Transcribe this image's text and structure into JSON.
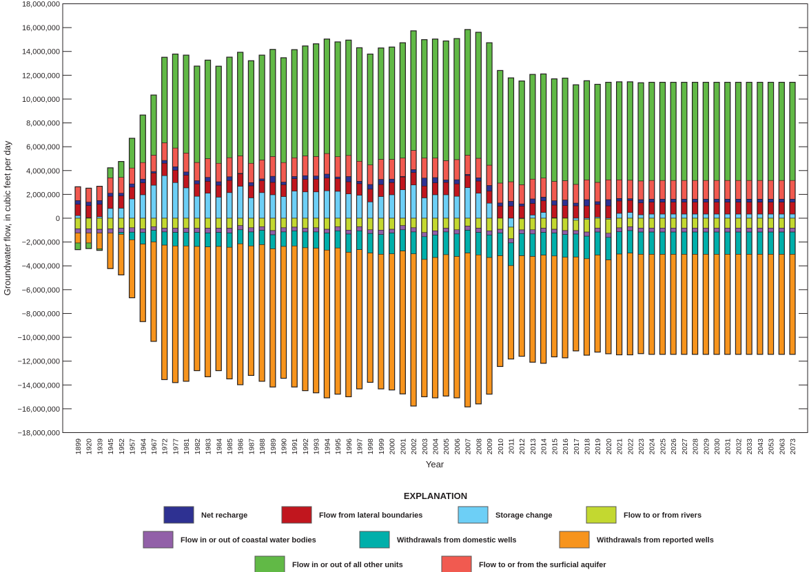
{
  "chart_data": {
    "type": "bar",
    "stacked": true,
    "xlabel": "Year",
    "ylabel": "Groundwater flow, in cubic feet per day",
    "ylim": [
      -18000000,
      18000000
    ],
    "yticks": [
      18000000,
      16000000,
      14000000,
      12000000,
      10000000,
      8000000,
      6000000,
      4000000,
      2000000,
      0,
      -2000000,
      -4000000,
      -6000000,
      -8000000,
      -10000000,
      -12000000,
      -14000000,
      -16000000,
      -18000000
    ],
    "ytick_labels": [
      "18,000,000",
      "16,000,000",
      "14,000,000",
      "12,000,000",
      "10,000,000",
      "8,000,000",
      "6,000,000",
      "4,000,000",
      "2,000,000",
      "0",
      "−2,000,000",
      "−4,000,000",
      "−6,000,000",
      "−8,000,000",
      "−10,000,000",
      "−12,000,000",
      "−14,000,000",
      "−16,000,000",
      "−18,000,000"
    ],
    "grid": false,
    "legend_title": "EXPLANATION",
    "legend_position": "bottom",
    "categories": [
      "1899",
      "1920",
      "1939",
      "1945",
      "1952",
      "1957",
      "1964",
      "1967",
      "1972",
      "1977",
      "1981",
      "1982",
      "1983",
      "1984",
      "1985",
      "1986",
      "1987",
      "1988",
      "1989",
      "1990",
      "1991",
      "1992",
      "1993",
      "1994",
      "1995",
      "1996",
      "1997",
      "1998",
      "1999",
      "2000",
      "2001",
      "2002",
      "2003",
      "2004",
      "2005",
      "2006",
      "2007",
      "2008",
      "2009",
      "2010",
      "2011",
      "2012",
      "2013",
      "2014",
      "2015",
      "2016",
      "2017",
      "2018",
      "2019",
      "2020",
      "2021",
      "2022",
      "2023",
      "2024",
      "2025",
      "2026",
      "2027",
      "2028",
      "2029",
      "2030",
      "2031",
      "2032",
      "2033",
      "2043",
      "2053",
      "2063",
      "2073"
    ],
    "series": [
      {
        "name": "Net recharge",
        "color": "#2e3192",
        "values": [
          310000,
          290000,
          310000,
          260000,
          220000,
          270000,
          310000,
          130000,
          240000,
          290000,
          270000,
          270000,
          330000,
          290000,
          310000,
          50000,
          270000,
          150000,
          510000,
          220000,
          180000,
          310000,
          260000,
          330000,
          140000,
          440000,
          200000,
          390000,
          430000,
          290000,
          50000,
          250000,
          670000,
          440000,
          200000,
          350000,
          90000,
          270000,
          470000,
          260000,
          400000,
          180000,
          380000,
          310000,
          370000,
          470000,
          230000,
          520000,
          230000,
          520000,
          210000,
          150000,
          270000,
          250000,
          250000,
          250000,
          250000,
          250000,
          250000,
          250000,
          250000,
          250000,
          250000,
          250000,
          250000,
          250000,
          250000
        ]
      },
      {
        "name": "Flow from lateral boundaries",
        "color": "#c1161e",
        "values": [
          950000,
          1010000,
          1040000,
          1020000,
          1040000,
          990000,
          1000000,
          1020000,
          1040000,
          1040000,
          1060000,
          1040000,
          1000000,
          1000000,
          1020000,
          1040000,
          1010000,
          1000000,
          1040000,
          990000,
          1040000,
          1050000,
          1070000,
          1070000,
          1060000,
          1020000,
          970000,
          1070000,
          1010000,
          1020000,
          1070000,
          1040000,
          990000,
          1000000,
          1040000,
          1040000,
          1020000,
          1020000,
          1020000,
          1020000,
          1020000,
          1020000,
          970000,
          970000,
          1060000,
          1040000,
          1040000,
          1040000,
          1060000,
          1040000,
          1040000,
          1010000,
          1000000,
          1000000,
          1000000,
          1000000,
          1000000,
          1000000,
          1000000,
          1000000,
          1000000,
          1000000,
          1000000,
          1000000,
          1000000,
          1000000,
          1000000
        ]
      },
      {
        "name": "Storage change",
        "color": "#6dcff6",
        "values": [
          220000,
          50000,
          130000,
          820000,
          840000,
          1620000,
          1970000,
          2770000,
          3570000,
          2990000,
          2550000,
          1840000,
          2100000,
          1770000,
          2150000,
          2680000,
          1710000,
          2150000,
          1970000,
          1820000,
          2280000,
          2210000,
          2210000,
          2300000,
          2260000,
          2040000,
          1930000,
          1370000,
          1820000,
          1970000,
          2390000,
          2790000,
          1710000,
          1970000,
          1970000,
          1840000,
          2570000,
          2100000,
          1260000,
          0,
          -750000,
          -50000,
          270000,
          490000,
          40000,
          20000,
          -170000,
          -100000,
          100000,
          -80000,
          410000,
          480000,
          290000,
          350000,
          350000,
          350000,
          350000,
          350000,
          350000,
          350000,
          350000,
          350000,
          350000,
          350000,
          350000,
          350000,
          350000
        ]
      },
      {
        "name": "Flow to or from rivers",
        "color": "#c3d830",
        "values": [
          -890000,
          -890000,
          -930000,
          -890000,
          -840000,
          -800000,
          -890000,
          -710000,
          -840000,
          -840000,
          -840000,
          -840000,
          -840000,
          -840000,
          -840000,
          -620000,
          -800000,
          -710000,
          -1040000,
          -800000,
          -750000,
          -840000,
          -800000,
          -930000,
          -710000,
          -1000000,
          -710000,
          -970000,
          -1000000,
          -930000,
          -620000,
          -800000,
          -1200000,
          -1060000,
          -840000,
          -970000,
          -660000,
          -840000,
          -1060000,
          -930000,
          -970000,
          -930000,
          -970000,
          -840000,
          -930000,
          -1040000,
          -870000,
          -1060000,
          -830000,
          -1180000,
          -810000,
          -710000,
          -830000,
          -830000,
          -830000,
          -830000,
          -830000,
          -830000,
          -830000,
          -830000,
          -830000,
          -830000,
          -830000,
          -830000,
          -830000,
          -830000,
          -830000
        ]
      },
      {
        "name": "Flow in or out of coastal water bodies",
        "color": "#9260a8",
        "values": [
          -350000,
          -350000,
          -310000,
          -350000,
          -350000,
          -370000,
          -310000,
          -310000,
          -310000,
          -350000,
          -350000,
          -350000,
          -400000,
          -350000,
          -400000,
          -350000,
          -350000,
          -310000,
          -350000,
          -350000,
          -310000,
          -310000,
          -350000,
          -310000,
          -350000,
          -330000,
          -350000,
          -310000,
          -370000,
          -310000,
          -350000,
          -350000,
          -350000,
          -350000,
          -310000,
          -350000,
          -350000,
          -350000,
          -350000,
          -310000,
          -350000,
          -310000,
          -350000,
          -350000,
          -310000,
          -330000,
          -290000,
          -350000,
          -330000,
          -350000,
          -330000,
          -330000,
          -330000,
          -330000,
          -330000,
          -330000,
          -330000,
          -330000,
          -330000,
          -330000,
          -330000,
          -330000,
          -330000,
          -330000,
          -330000,
          -330000,
          -330000
        ]
      },
      {
        "name": "Withdrawals from domestic wells",
        "color": "#00afaa",
        "values": [
          0,
          0,
          0,
          0,
          -160000,
          -640000,
          -970000,
          -970000,
          -1110000,
          -1140000,
          -1140000,
          -1180000,
          -1170000,
          -1180000,
          -1200000,
          -1180000,
          -1180000,
          -1200000,
          -1180000,
          -1220000,
          -1270000,
          -1330000,
          -1370000,
          -1440000,
          -1440000,
          -1530000,
          -1580000,
          -1640000,
          -1660000,
          -1750000,
          -1780000,
          -1840000,
          -1910000,
          -1890000,
          -1910000,
          -1890000,
          -1910000,
          -1890000,
          -1890000,
          -1910000,
          -1910000,
          -1860000,
          -1890000,
          -1910000,
          -1930000,
          -1910000,
          -1930000,
          -1890000,
          -1930000,
          -1890000,
          -1870000,
          -1890000,
          -1870000,
          -1870000,
          -1870000,
          -1870000,
          -1870000,
          -1870000,
          -1870000,
          -1870000,
          -1870000,
          -1870000,
          -1870000,
          -1870000,
          -1870000,
          -1870000,
          -1870000
        ]
      },
      {
        "name": "Withdrawals from reported wells",
        "color": "#f7941d",
        "values": [
          -840000,
          -840000,
          -1330000,
          -2990000,
          -3410000,
          -4870000,
          -6510000,
          -8350000,
          -11290000,
          -11470000,
          -11360000,
          -10430000,
          -10900000,
          -10430000,
          -11050000,
          -11830000,
          -10870000,
          -11470000,
          -11600000,
          -11070000,
          -11840000,
          -12000000,
          -12140000,
          -12400000,
          -12270000,
          -12130000,
          -11690000,
          -10860000,
          -11300000,
          -11430000,
          -12000000,
          -12780000,
          -11530000,
          -11780000,
          -11870000,
          -11870000,
          -12920000,
          -12510000,
          -11470000,
          -9300000,
          -7840000,
          -8440000,
          -8880000,
          -9080000,
          -8470000,
          -8440000,
          -7880000,
          -8100000,
          -8150000,
          -7880000,
          -8460000,
          -8540000,
          -8340000,
          -8400000,
          -8400000,
          -8400000,
          -8400000,
          -8400000,
          -8400000,
          -8400000,
          -8400000,
          -8400000,
          -8400000,
          -8400000,
          -8400000,
          -8400000,
          -8400000
        ]
      },
      {
        "name": "Flow in or out of all other units",
        "color": "#61b946",
        "values": [
          -560000,
          -470000,
          -130000,
          840000,
          1330000,
          2500000,
          3990000,
          5050000,
          7180000,
          7890000,
          8220000,
          8090000,
          8270000,
          8150000,
          8440000,
          8700000,
          8610000,
          8800000,
          8990000,
          8800000,
          9080000,
          9230000,
          9460000,
          9610000,
          9640000,
          9680000,
          9530000,
          9310000,
          9350000,
          9430000,
          9680000,
          10040000,
          9940000,
          9990000,
          10050000,
          10160000,
          10550000,
          10580000,
          10280000,
          9450000,
          8720000,
          8710000,
          8790000,
          8740000,
          8610000,
          8610000,
          8360000,
          8320000,
          8230000,
          8190000,
          8230000,
          8260000,
          8240000,
          8240000,
          8240000,
          8240000,
          8240000,
          8240000,
          8240000,
          8240000,
          8240000,
          8240000,
          8240000,
          8240000,
          8240000,
          8240000,
          8240000
        ]
      },
      {
        "name": "Flow to or from the surficial aquifer",
        "color": "#f15a50",
        "values": [
          1160000,
          1170000,
          1200000,
          1290000,
          1330000,
          1330000,
          1390000,
          1370000,
          1480000,
          1570000,
          1590000,
          1530000,
          1570000,
          1550000,
          1600000,
          1460000,
          1620000,
          1590000,
          1660000,
          1640000,
          1570000,
          1660000,
          1640000,
          1730000,
          1700000,
          1770000,
          1680000,
          1640000,
          1680000,
          1660000,
          1540000,
          1610000,
          1680000,
          1640000,
          1620000,
          1690000,
          1610000,
          1640000,
          1700000,
          1670000,
          1640000,
          1610000,
          1660000,
          1600000,
          1620000,
          1620000,
          1570000,
          1660000,
          1620000,
          1660000,
          1560000,
          1550000,
          1570000,
          1570000,
          1570000,
          1570000,
          1570000,
          1570000,
          1570000,
          1570000,
          1570000,
          1570000,
          1570000,
          1570000,
          1570000,
          1570000,
          1570000
        ]
      }
    ]
  }
}
